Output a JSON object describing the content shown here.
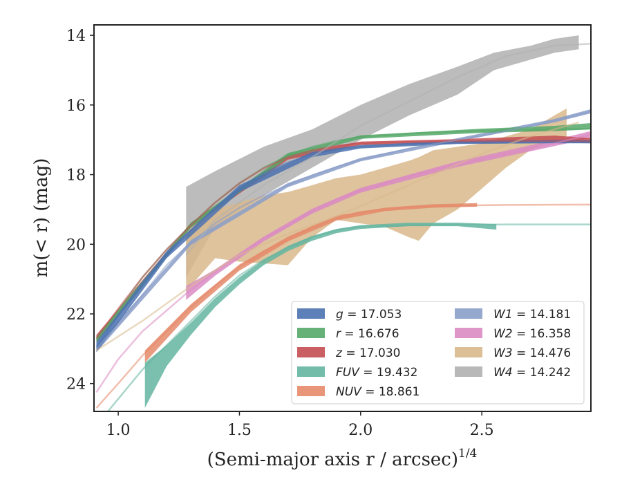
{
  "chart_data": {
    "type": "area",
    "xlabel": "(Semi-major axis r / arcsec)",
    "xlabel_sup": "1/4",
    "ylabel": "m(< r) (mag)",
    "xlim": [
      0.9,
      2.95
    ],
    "ylim": [
      24.8,
      13.7
    ],
    "y_inverted": true,
    "xticks": [
      1.0,
      1.5,
      2.0,
      2.5
    ],
    "xtick_labels": [
      "1.0",
      "1.5",
      "2.0",
      "2.5"
    ],
    "yticks": [
      14,
      16,
      18,
      20,
      22,
      24
    ],
    "ytick_labels": [
      "14",
      "16",
      "18",
      "20",
      "22",
      "24"
    ],
    "grid": false,
    "legend_placement": "lower-right",
    "series": [
      {
        "name": "g",
        "total": "17.053",
        "color": "#4c72b0",
        "line": [
          [
            0.91,
            22.95
          ],
          [
            1.0,
            22.05
          ],
          [
            1.1,
            21.1
          ],
          [
            1.2,
            20.3
          ],
          [
            1.3,
            19.6
          ],
          [
            1.4,
            18.95
          ],
          [
            1.5,
            18.4
          ],
          [
            1.6,
            17.95
          ],
          [
            1.7,
            17.65
          ],
          [
            1.8,
            17.42
          ],
          [
            1.9,
            17.27
          ],
          [
            2.0,
            17.2
          ],
          [
            2.2,
            17.13
          ],
          [
            2.4,
            17.08
          ],
          [
            2.6,
            17.06
          ],
          [
            2.8,
            17.05
          ],
          [
            2.95,
            17.05
          ]
        ],
        "band": [
          [
            0.91,
            22.8,
            23.1
          ],
          [
            1.2,
            20.2,
            20.4
          ],
          [
            1.5,
            18.3,
            18.5
          ],
          [
            1.8,
            17.35,
            17.5
          ],
          [
            2.0,
            17.15,
            17.25
          ],
          [
            2.4,
            17.03,
            17.12
          ],
          [
            2.8,
            17.0,
            17.1
          ],
          [
            2.95,
            17.0,
            17.1
          ]
        ]
      },
      {
        "name": "r",
        "total": "16.676",
        "color": "#55a868",
        "line": [
          [
            0.91,
            22.75
          ],
          [
            1.0,
            21.9
          ],
          [
            1.1,
            20.95
          ],
          [
            1.2,
            20.15
          ],
          [
            1.3,
            19.45
          ],
          [
            1.4,
            18.8
          ],
          [
            1.5,
            18.25
          ],
          [
            1.6,
            17.8
          ],
          [
            1.7,
            17.45
          ],
          [
            1.8,
            17.2
          ],
          [
            1.9,
            17.03
          ],
          [
            2.0,
            16.92
          ],
          [
            2.2,
            16.82
          ],
          [
            2.4,
            16.76
          ],
          [
            2.6,
            16.72
          ],
          [
            2.8,
            16.7
          ],
          [
            2.95,
            16.68
          ]
        ],
        "band": [
          [
            0.91,
            22.65,
            22.85
          ],
          [
            1.3,
            19.38,
            19.52
          ],
          [
            1.7,
            17.38,
            17.52
          ],
          [
            2.0,
            16.87,
            16.97
          ],
          [
            2.5,
            16.68,
            16.8
          ],
          [
            2.8,
            16.6,
            16.75
          ],
          [
            2.95,
            16.52,
            16.7
          ]
        ]
      },
      {
        "name": "z",
        "total": "17.030",
        "color": "#c44e52",
        "line": [
          [
            0.91,
            22.7
          ],
          [
            1.0,
            21.85
          ],
          [
            1.1,
            20.95
          ],
          [
            1.2,
            20.15
          ],
          [
            1.3,
            19.45
          ],
          [
            1.4,
            18.8
          ],
          [
            1.5,
            18.25
          ],
          [
            1.6,
            17.82
          ],
          [
            1.7,
            17.5
          ],
          [
            1.8,
            17.3
          ],
          [
            1.9,
            17.17
          ],
          [
            2.0,
            17.1
          ],
          [
            2.2,
            17.06
          ],
          [
            2.4,
            17.04
          ],
          [
            2.6,
            17.03
          ],
          [
            2.8,
            17.03
          ],
          [
            2.95,
            17.03
          ]
        ],
        "band": [
          [
            0.91,
            22.6,
            22.8
          ],
          [
            1.3,
            19.38,
            19.52
          ],
          [
            1.7,
            17.43,
            17.57
          ],
          [
            2.0,
            17.05,
            17.15
          ],
          [
            2.4,
            16.98,
            17.1
          ],
          [
            2.8,
            16.88,
            17.08
          ],
          [
            2.95,
            16.95,
            17.1
          ]
        ]
      },
      {
        "name": "FUV",
        "total": "19.432",
        "color": "#64b5a0",
        "line": [
          [
            0.91,
            25.2
          ],
          [
            1.1,
            23.6
          ],
          [
            1.2,
            22.9
          ],
          [
            1.3,
            22.2
          ],
          [
            1.4,
            21.5
          ],
          [
            1.5,
            20.9
          ],
          [
            1.6,
            20.45
          ],
          [
            1.7,
            20.1
          ],
          [
            1.8,
            19.8
          ],
          [
            1.9,
            19.6
          ],
          [
            2.0,
            19.5
          ],
          [
            2.2,
            19.45
          ],
          [
            2.4,
            19.44
          ],
          [
            2.6,
            19.43
          ],
          [
            2.95,
            19.43
          ]
        ],
        "band": [
          [
            1.11,
            23.4,
            24.7
          ],
          [
            1.2,
            22.9,
            23.5
          ],
          [
            1.3,
            22.25,
            22.6
          ],
          [
            1.4,
            21.55,
            21.8
          ],
          [
            1.5,
            20.95,
            21.15
          ],
          [
            1.6,
            20.45,
            20.6
          ],
          [
            1.7,
            20.05,
            20.2
          ],
          [
            1.8,
            19.76,
            19.9
          ],
          [
            1.9,
            19.56,
            19.68
          ],
          [
            2.0,
            19.45,
            19.56
          ],
          [
            2.2,
            19.38,
            19.48
          ],
          [
            2.4,
            19.38,
            19.48
          ],
          [
            2.56,
            19.42,
            19.58
          ]
        ]
      },
      {
        "name": "NUV",
        "total": "18.861",
        "color": "#e5896a",
        "line": [
          [
            0.91,
            24.7
          ],
          [
            1.0,
            24.0
          ],
          [
            1.1,
            23.2
          ],
          [
            1.2,
            22.5
          ],
          [
            1.3,
            21.8
          ],
          [
            1.4,
            21.2
          ],
          [
            1.5,
            20.65
          ],
          [
            1.6,
            20.2
          ],
          [
            1.7,
            19.85
          ],
          [
            1.8,
            19.5
          ],
          [
            1.9,
            19.25
          ],
          [
            2.0,
            19.07
          ],
          [
            2.2,
            18.93
          ],
          [
            2.4,
            18.89
          ],
          [
            2.6,
            18.87
          ],
          [
            2.95,
            18.86
          ]
        ],
        "band": [
          [
            1.11,
            23.05,
            23.4
          ],
          [
            1.3,
            21.72,
            21.95
          ],
          [
            1.5,
            20.58,
            20.76
          ],
          [
            1.7,
            19.78,
            19.92
          ],
          [
            1.9,
            19.18,
            19.32
          ],
          [
            2.1,
            18.95,
            19.05
          ],
          [
            2.3,
            18.85,
            18.95
          ],
          [
            2.48,
            18.82,
            18.92
          ]
        ]
      },
      {
        "name": "W1",
        "total": "14.181",
        "color": "#8a9ec8",
        "line": [
          [
            0.91,
            23.0
          ],
          [
            1.0,
            22.3
          ],
          [
            1.1,
            21.45
          ],
          [
            1.2,
            20.6
          ],
          [
            1.3,
            19.95
          ],
          [
            1.4,
            19.4
          ],
          [
            1.5,
            18.95
          ],
          [
            1.6,
            18.6
          ],
          [
            1.7,
            18.3
          ],
          [
            1.8,
            18.02
          ],
          [
            1.9,
            17.78
          ],
          [
            2.0,
            17.57
          ],
          [
            2.2,
            17.25
          ],
          [
            2.4,
            17.0
          ],
          [
            2.6,
            16.75
          ],
          [
            2.8,
            16.45
          ],
          [
            2.95,
            16.18
          ]
        ],
        "band": [
          [
            0.91,
            22.9,
            23.1
          ],
          [
            1.3,
            19.88,
            20.02
          ],
          [
            1.7,
            18.24,
            18.36
          ],
          [
            2.0,
            17.52,
            17.62
          ],
          [
            2.4,
            16.95,
            17.05
          ],
          [
            2.8,
            16.4,
            16.5
          ],
          [
            2.95,
            16.12,
            16.24
          ]
        ]
      },
      {
        "name": "W2",
        "total": "16.358",
        "color": "#da8bc3",
        "line": [
          [
            0.91,
            24.25
          ],
          [
            1.0,
            23.3
          ],
          [
            1.1,
            22.5
          ],
          [
            1.2,
            21.9
          ],
          [
            1.3,
            21.3
          ],
          [
            1.4,
            20.8
          ],
          [
            1.5,
            20.3
          ],
          [
            1.6,
            19.85
          ],
          [
            1.7,
            19.45
          ],
          [
            1.8,
            19.05
          ],
          [
            1.9,
            18.72
          ],
          [
            2.0,
            18.45
          ],
          [
            2.2,
            18.05
          ],
          [
            2.4,
            17.7
          ],
          [
            2.6,
            17.4
          ],
          [
            2.8,
            17.1
          ],
          [
            2.95,
            16.85
          ]
        ],
        "band": [
          [
            1.28,
            21.2,
            21.6
          ],
          [
            1.4,
            20.72,
            20.9
          ],
          [
            1.6,
            19.78,
            19.92
          ],
          [
            1.8,
            18.98,
            19.12
          ],
          [
            2.0,
            18.38,
            18.52
          ],
          [
            2.4,
            17.62,
            17.78
          ],
          [
            2.8,
            17.0,
            17.18
          ],
          [
            2.95,
            16.75,
            16.95
          ]
        ]
      },
      {
        "name": "W3",
        "total": "14.476",
        "color": "#d9b88c",
        "line": [
          [
            0.91,
            23.05
          ],
          [
            1.1,
            22.2
          ],
          [
            1.3,
            21.2
          ],
          [
            1.5,
            20.3
          ],
          [
            1.7,
            19.7
          ],
          [
            1.9,
            19.2
          ],
          [
            2.1,
            18.6
          ],
          [
            2.3,
            18.0
          ],
          [
            2.5,
            17.4
          ],
          [
            2.7,
            16.9
          ],
          [
            2.9,
            16.5
          ]
        ],
        "band": [
          [
            1.28,
            19.5,
            21.35
          ],
          [
            1.4,
            19.0,
            20.4
          ],
          [
            1.5,
            18.8,
            20.5
          ],
          [
            1.6,
            18.6,
            20.55
          ],
          [
            1.7,
            18.5,
            20.6
          ],
          [
            1.8,
            18.3,
            19.8
          ],
          [
            1.9,
            18.1,
            19.3
          ],
          [
            2.0,
            18.0,
            19.4
          ],
          [
            2.1,
            17.8,
            19.5
          ],
          [
            2.2,
            17.6,
            19.8
          ],
          [
            2.24,
            17.5,
            19.9
          ],
          [
            2.3,
            17.3,
            19.4
          ],
          [
            2.4,
            17.2,
            19.0
          ],
          [
            2.5,
            17.1,
            18.4
          ],
          [
            2.6,
            16.9,
            17.8
          ],
          [
            2.7,
            16.7,
            17.3
          ],
          [
            2.8,
            16.3,
            17.0
          ],
          [
            2.85,
            16.1,
            16.9
          ]
        ]
      },
      {
        "name": "W4",
        "total": "14.242",
        "color": "#b0b0b0",
        "line": [
          [
            1.28,
            20.3
          ],
          [
            1.4,
            19.3
          ],
          [
            1.6,
            18.3
          ],
          [
            1.8,
            17.5
          ],
          [
            2.0,
            16.6
          ],
          [
            2.2,
            15.9
          ],
          [
            2.4,
            15.2
          ],
          [
            2.6,
            14.6
          ],
          [
            2.8,
            14.3
          ],
          [
            2.95,
            14.24
          ]
        ],
        "band": [
          [
            1.28,
            18.35,
            20.95
          ],
          [
            1.4,
            17.9,
            19.5
          ],
          [
            1.6,
            17.2,
            18.6
          ],
          [
            1.8,
            16.7,
            17.8
          ],
          [
            2.0,
            16.0,
            17.0
          ],
          [
            2.2,
            15.4,
            16.3
          ],
          [
            2.4,
            14.9,
            15.7
          ],
          [
            2.55,
            14.5,
            15.0
          ],
          [
            2.7,
            14.3,
            14.7
          ],
          [
            2.8,
            14.1,
            14.5
          ],
          [
            2.9,
            14.0,
            14.4
          ]
        ]
      }
    ]
  }
}
